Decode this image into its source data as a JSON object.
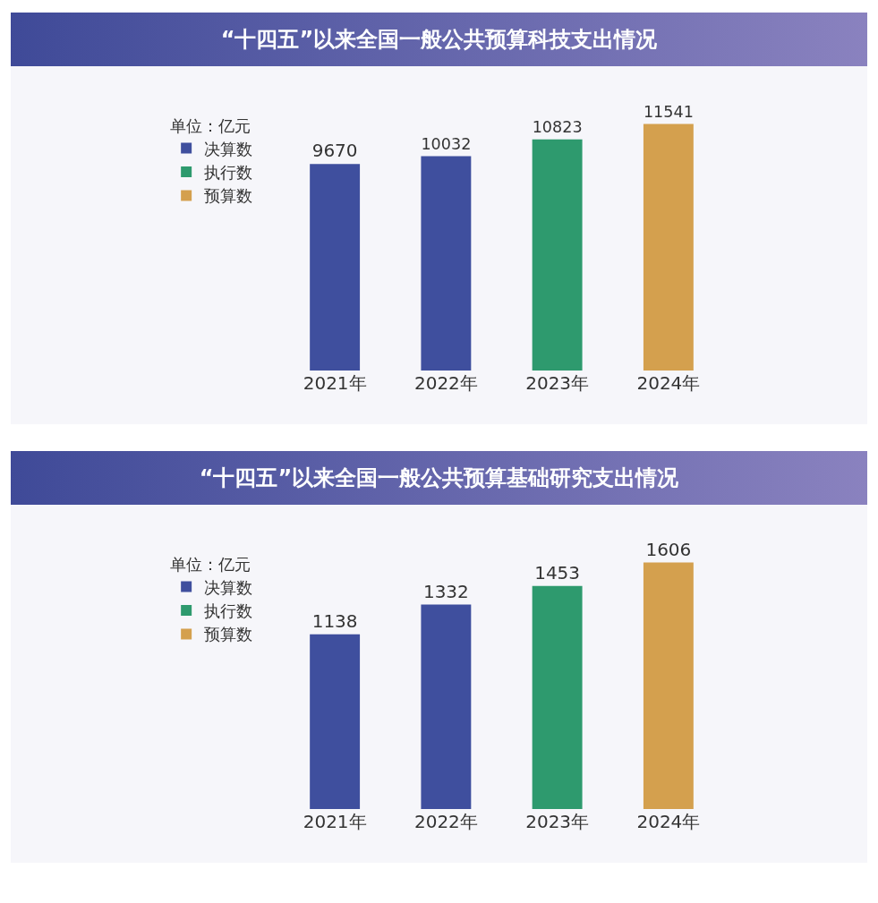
{
  "chart_data": [
    {
      "type": "bar",
      "title": "“十四五”以来全国一般公共预算科技支出情况",
      "legend_title": "单位：亿元",
      "categories": [
        "2021年",
        "2022年",
        "2023年",
        "2024年"
      ],
      "series": [
        {
          "name": "决算数",
          "color": "#3f4f9e",
          "values": [
            9670,
            10032,
            null,
            null
          ]
        },
        {
          "name": "执行数",
          "color": "#2e9a6e",
          "values": [
            null,
            null,
            10823,
            null
          ]
        },
        {
          "name": "预算数",
          "color": "#d4a04e",
          "values": [
            null,
            null,
            null,
            11541
          ]
        }
      ],
      "data_labels": true,
      "legend": "left",
      "grid": false
    },
    {
      "type": "bar",
      "title": "“十四五”以来全国一般公共预算基础研究支出情况",
      "legend_title": "单位：亿元",
      "categories": [
        "2021年",
        "2022年",
        "2023年",
        "2024年"
      ],
      "series": [
        {
          "name": "决算数",
          "color": "#3f4f9e",
          "values": [
            1138,
            1332,
            null,
            null
          ]
        },
        {
          "name": "执行数",
          "color": "#2e9a6e",
          "values": [
            null,
            null,
            1453,
            null
          ]
        },
        {
          "name": "预算数",
          "color": "#d4a04e",
          "values": [
            null,
            null,
            null,
            1606
          ]
        }
      ],
      "data_labels": true,
      "legend": "left",
      "grid": false
    }
  ]
}
